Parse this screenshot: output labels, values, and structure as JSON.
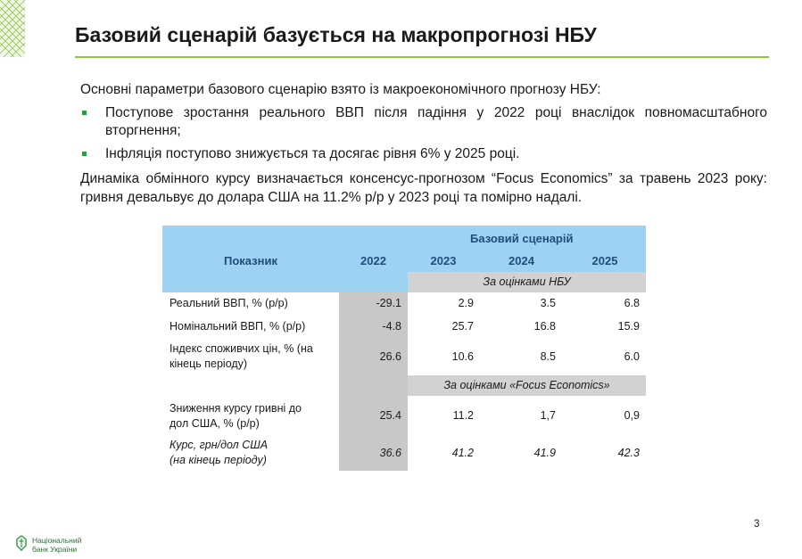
{
  "title": "Базовий сценарій базується на макропрогнозі НБУ",
  "intro": "Основні параметри базового сценарію взято із макроекономічного прогнозу НБУ:",
  "bullets": [
    "Поступове зростання реального ВВП після падіння у 2022 році внаслідок повномасштабного вторгнення;",
    "Інфляція поступово знижується та досягає рівня 6% у 2025 році."
  ],
  "paragraph": "Динаміка обмінного курсу визначається консенсус-прогнозом “Focus Economics” за травень 2023 року: гривня девальвує до долара США на 11.2% р/р у 2023 році та помірно надалі.",
  "table": {
    "header_indicator": "Показник",
    "header_2022": "2022",
    "header_scenario": "Базовий сценарій",
    "header_years": [
      "2023",
      "2024",
      "2025"
    ],
    "subheader_nbu": "За оцінками НБУ",
    "subheader_focus": "За оцінками «Focus Economics»",
    "rows": [
      {
        "label": "Реальний ВВП, % (р/р)",
        "v2022": "-29.1",
        "v2023": "2.9",
        "v2024": "3.5",
        "v2025": "6.8"
      },
      {
        "label": "Номінальний ВВП, % (р/р)",
        "v2022": "-4.8",
        "v2023": "25.7",
        "v2024": "16.8",
        "v2025": "15.9"
      },
      {
        "label_line1": "Індекс споживчих цін, % (на",
        "label_line2": "кінець періоду)",
        "v2022": "26.6",
        "v2023": "10.6",
        "v2024": "8.5",
        "v2025": "6.0"
      },
      {
        "label_line1": "Зниження курсу гривні до",
        "label_line2": "дол США, % (р/р)",
        "v2022": "25.4",
        "v2023": "11.2",
        "v2024": "1,7",
        "v2025": "0,9"
      },
      {
        "label_line1": "Курс, грн/дол США",
        "label_line2": "(на кінець періоду)",
        "v2022": "36.6",
        "v2023": "41.2",
        "v2024": "41.9",
        "v2025": "42.3"
      }
    ]
  },
  "page_number": "3",
  "logo_text_line1": "Національний",
  "logo_text_line2": "банк України",
  "colors": {
    "accent_line": "#8dc63f",
    "bullet": "#2e9b43",
    "table_header": "#9dd2f3",
    "header_text": "#1f4e79"
  }
}
